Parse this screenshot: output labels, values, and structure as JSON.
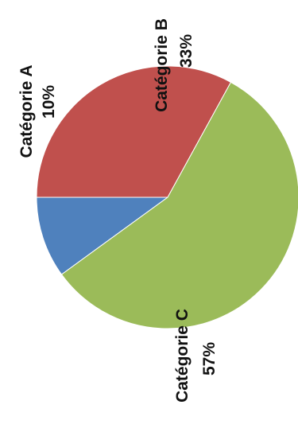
{
  "chart_data": {
    "type": "pie",
    "orientation": "rotated 90° counter-clockwise (text reads bottom-to-top)",
    "slices": [
      {
        "name": "Catégorie A",
        "value": 10,
        "label": "10%",
        "color": "#4f81bd"
      },
      {
        "name": "Catégorie B",
        "value": 33,
        "label": "33%",
        "color": "#c0504d"
      },
      {
        "name": "Catégorie C",
        "value": 57,
        "label": "57%",
        "color": "#9bbb59"
      }
    ],
    "legend": "none",
    "data_labels": "category name and percentage"
  }
}
